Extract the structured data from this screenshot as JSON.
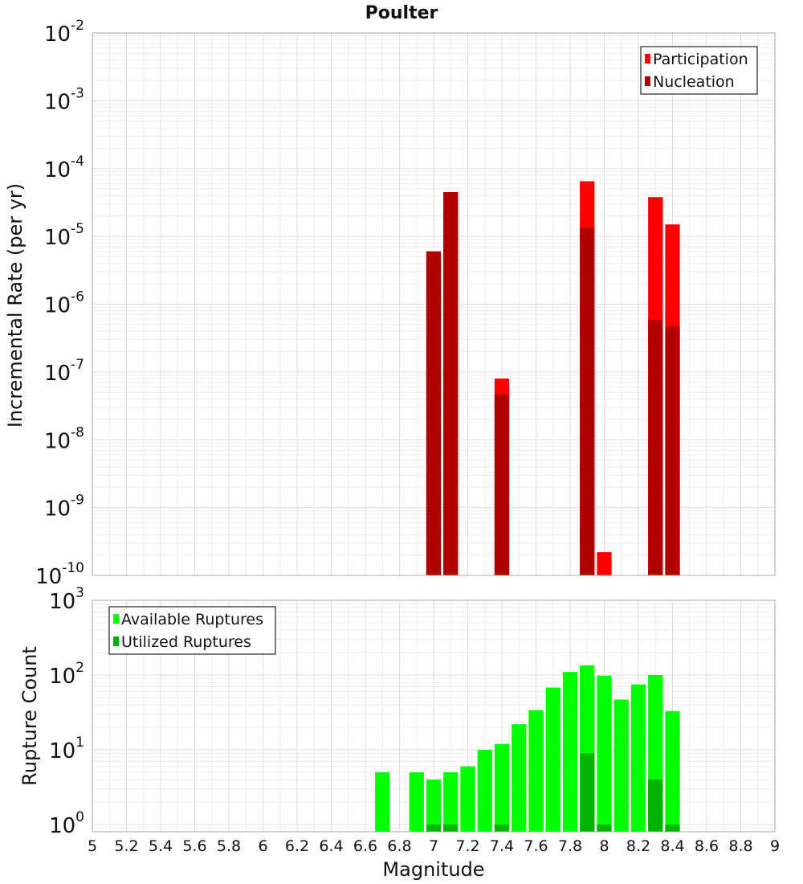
{
  "chart_data": [
    {
      "type": "bar",
      "title": "Poulter",
      "ylabel": "Incremental Rate (per yr)",
      "yscale": "log",
      "ylim": [
        1e-10,
        0.01
      ],
      "ytick_exponents": [
        -10,
        -9,
        -8,
        -7,
        -6,
        -5,
        -4,
        -3,
        -2
      ],
      "xlim": [
        5,
        9
      ],
      "bin_width": 0.1,
      "legend_position": "top-right",
      "series": [
        {
          "name": "Participation",
          "color": "#ff0000",
          "points": [
            {
              "x": 7.0,
              "y": 6e-06
            },
            {
              "x": 7.1,
              "y": 4.5e-05
            },
            {
              "x": 7.4,
              "y": 8e-08
            },
            {
              "x": 7.9,
              "y": 6.5e-05
            },
            {
              "x": 8.0,
              "y": 2.2e-10
            },
            {
              "x": 8.3,
              "y": 3.8e-05
            },
            {
              "x": 8.4,
              "y": 1.5e-05
            }
          ]
        },
        {
          "name": "Nucleation",
          "color": "#b00000",
          "points": [
            {
              "x": 7.0,
              "y": 6e-06
            },
            {
              "x": 7.1,
              "y": 4.5e-05
            },
            {
              "x": 7.4,
              "y": 4.7e-08
            },
            {
              "x": 7.9,
              "y": 1.35e-05
            },
            {
              "x": 8.3,
              "y": 5.8e-07
            },
            {
              "x": 8.4,
              "y": 4.7e-07
            }
          ]
        }
      ]
    },
    {
      "type": "bar",
      "ylabel": "Rupture Count",
      "xlabel": "Magnitude",
      "yscale": "log",
      "ylim": [
        0.8,
        1000
      ],
      "ytick_exponents": [
        0,
        1,
        2,
        3
      ],
      "xlim": [
        5,
        9
      ],
      "xticks": [
        "5",
        "5.2",
        "5.4",
        "5.6",
        "5.8",
        "6",
        "6.2",
        "6.4",
        "6.6",
        "6.8",
        "7",
        "7.2",
        "7.4",
        "7.6",
        "7.8",
        "8",
        "8.2",
        "8.4",
        "8.6",
        "8.8",
        "9"
      ],
      "bin_width": 0.1,
      "legend_position": "top-left",
      "series": [
        {
          "name": "Available Ruptures",
          "color": "#00ff00",
          "points": [
            {
              "x": 6.7,
              "y": 5
            },
            {
              "x": 6.9,
              "y": 5
            },
            {
              "x": 7.0,
              "y": 4
            },
            {
              "x": 7.1,
              "y": 5
            },
            {
              "x": 7.2,
              "y": 6
            },
            {
              "x": 7.3,
              "y": 10
            },
            {
              "x": 7.4,
              "y": 12
            },
            {
              "x": 7.5,
              "y": 22
            },
            {
              "x": 7.6,
              "y": 34
            },
            {
              "x": 7.7,
              "y": 68
            },
            {
              "x": 7.8,
              "y": 110
            },
            {
              "x": 7.9,
              "y": 135
            },
            {
              "x": 8.0,
              "y": 98
            },
            {
              "x": 8.1,
              "y": 47
            },
            {
              "x": 8.2,
              "y": 75
            },
            {
              "x": 8.3,
              "y": 100
            },
            {
              "x": 8.4,
              "y": 33
            }
          ]
        },
        {
          "name": "Utilized Ruptures",
          "color": "#00b400",
          "points": [
            {
              "x": 7.0,
              "y": 1
            },
            {
              "x": 7.1,
              "y": 1
            },
            {
              "x": 7.4,
              "y": 1
            },
            {
              "x": 7.9,
              "y": 9
            },
            {
              "x": 8.0,
              "y": 1
            },
            {
              "x": 8.3,
              "y": 4
            },
            {
              "x": 8.4,
              "y": 1
            }
          ]
        }
      ]
    }
  ]
}
